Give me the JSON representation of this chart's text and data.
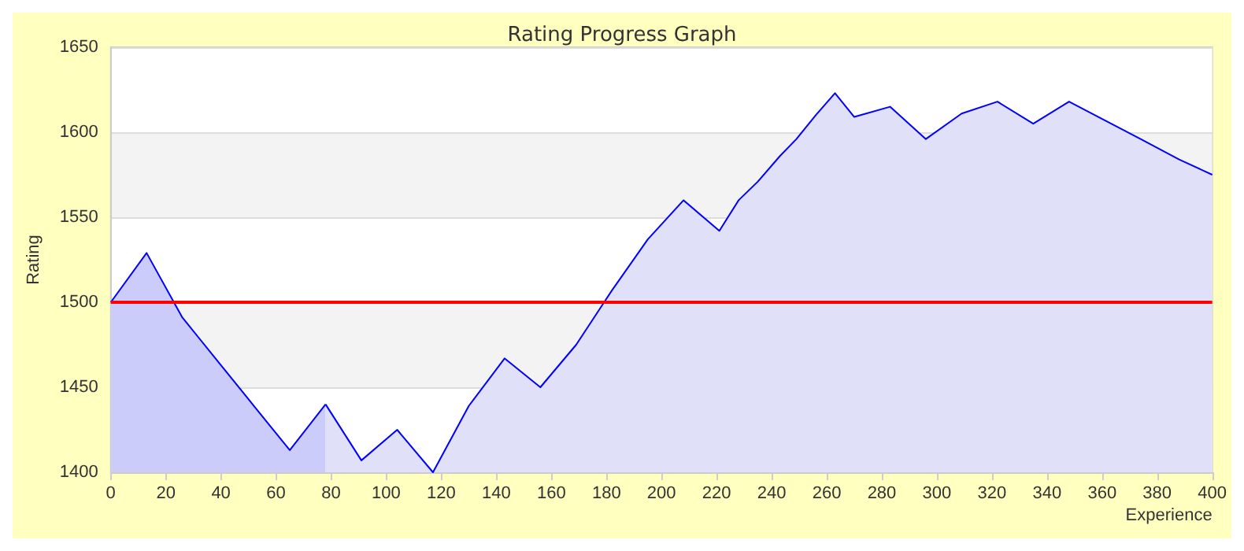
{
  "chart_data": {
    "type": "area",
    "title": "Rating Progress Graph",
    "xlabel": "Experience",
    "ylabel": "Rating",
    "series": [
      {
        "color": "#ccccfa",
        "x": [
          0,
          13,
          26,
          39,
          52,
          65,
          78
        ],
        "values": [
          1500,
          1529,
          1491,
          1465,
          1439,
          1413,
          1440
        ]
      },
      {
        "color": "#e0e0f8",
        "x": [
          78,
          91,
          104,
          117,
          130,
          143,
          156,
          169,
          182,
          195,
          208,
          221,
          228,
          235,
          243,
          249,
          256,
          263,
          270,
          283,
          296,
          309,
          322,
          335,
          348,
          361,
          374,
          388,
          400
        ],
        "values": [
          1440,
          1407,
          1425,
          1400,
          1439,
          1467,
          1450,
          1475,
          1507,
          1537,
          1560,
          1542,
          1560,
          1571,
          1586,
          1596,
          1610,
          1623,
          1609,
          1615,
          1596,
          1611,
          1618,
          1605,
          1618,
          1607,
          1596,
          1584,
          1575
        ]
      }
    ],
    "xlim": [
      0,
      400
    ],
    "xticks": [
      0,
      20,
      40,
      60,
      80,
      100,
      120,
      140,
      160,
      180,
      200,
      220,
      240,
      260,
      280,
      300,
      320,
      340,
      360,
      380,
      400
    ],
    "ylim": [
      1400,
      1650
    ],
    "yticks": [
      1400,
      1450,
      1500,
      1550,
      1600,
      1650
    ],
    "ref_lines": [
      {
        "axis": "y",
        "value": 1500,
        "color": "#ff0000"
      }
    ],
    "grid": "y",
    "marker": "none",
    "line_style": "solid"
  }
}
